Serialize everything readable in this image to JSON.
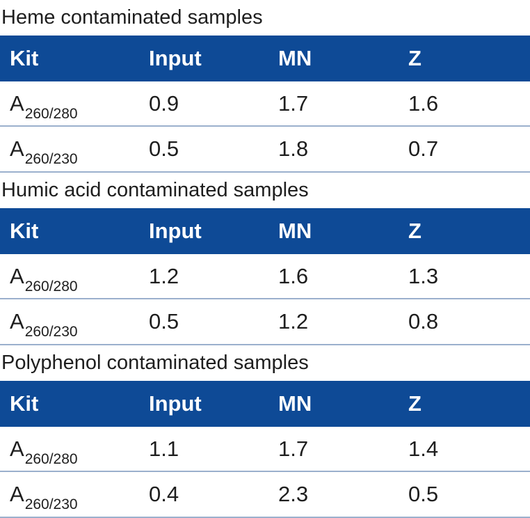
{
  "headers": {
    "kit": "Kit",
    "input": "Input",
    "mn": "MN",
    "z": "Z"
  },
  "sections": [
    {
      "title": "Heme contaminated samples",
      "rows": [
        {
          "kit_main": "A",
          "kit_sub": "260/280",
          "input": "0.9",
          "mn": "1.7",
          "z": "1.6"
        },
        {
          "kit_main": "A",
          "kit_sub": "260/230",
          "input": "0.5",
          "mn": "1.8",
          "z": "0.7"
        }
      ]
    },
    {
      "title": "Humic acid contaminated samples",
      "rows": [
        {
          "kit_main": "A",
          "kit_sub": "260/280",
          "input": "1.2",
          "mn": "1.6",
          "z": "1.3"
        },
        {
          "kit_main": "A",
          "kit_sub": "260/230",
          "input": "0.5",
          "mn": "1.2",
          "z": "0.8"
        }
      ]
    },
    {
      "title": "Polyphenol contaminated samples",
      "rows": [
        {
          "kit_main": "A",
          "kit_sub": "260/280",
          "input": "1.1",
          "mn": "1.7",
          "z": "1.4"
        },
        {
          "kit_main": "A",
          "kit_sub": "260/230",
          "input": "0.4",
          "mn": "2.3",
          "z": "0.5"
        }
      ]
    }
  ],
  "colors": {
    "header_background": "#0e4a96",
    "header_text": "#ffffff",
    "row_divider": "#9bb0cd",
    "body_text": "#1e1e1e"
  }
}
